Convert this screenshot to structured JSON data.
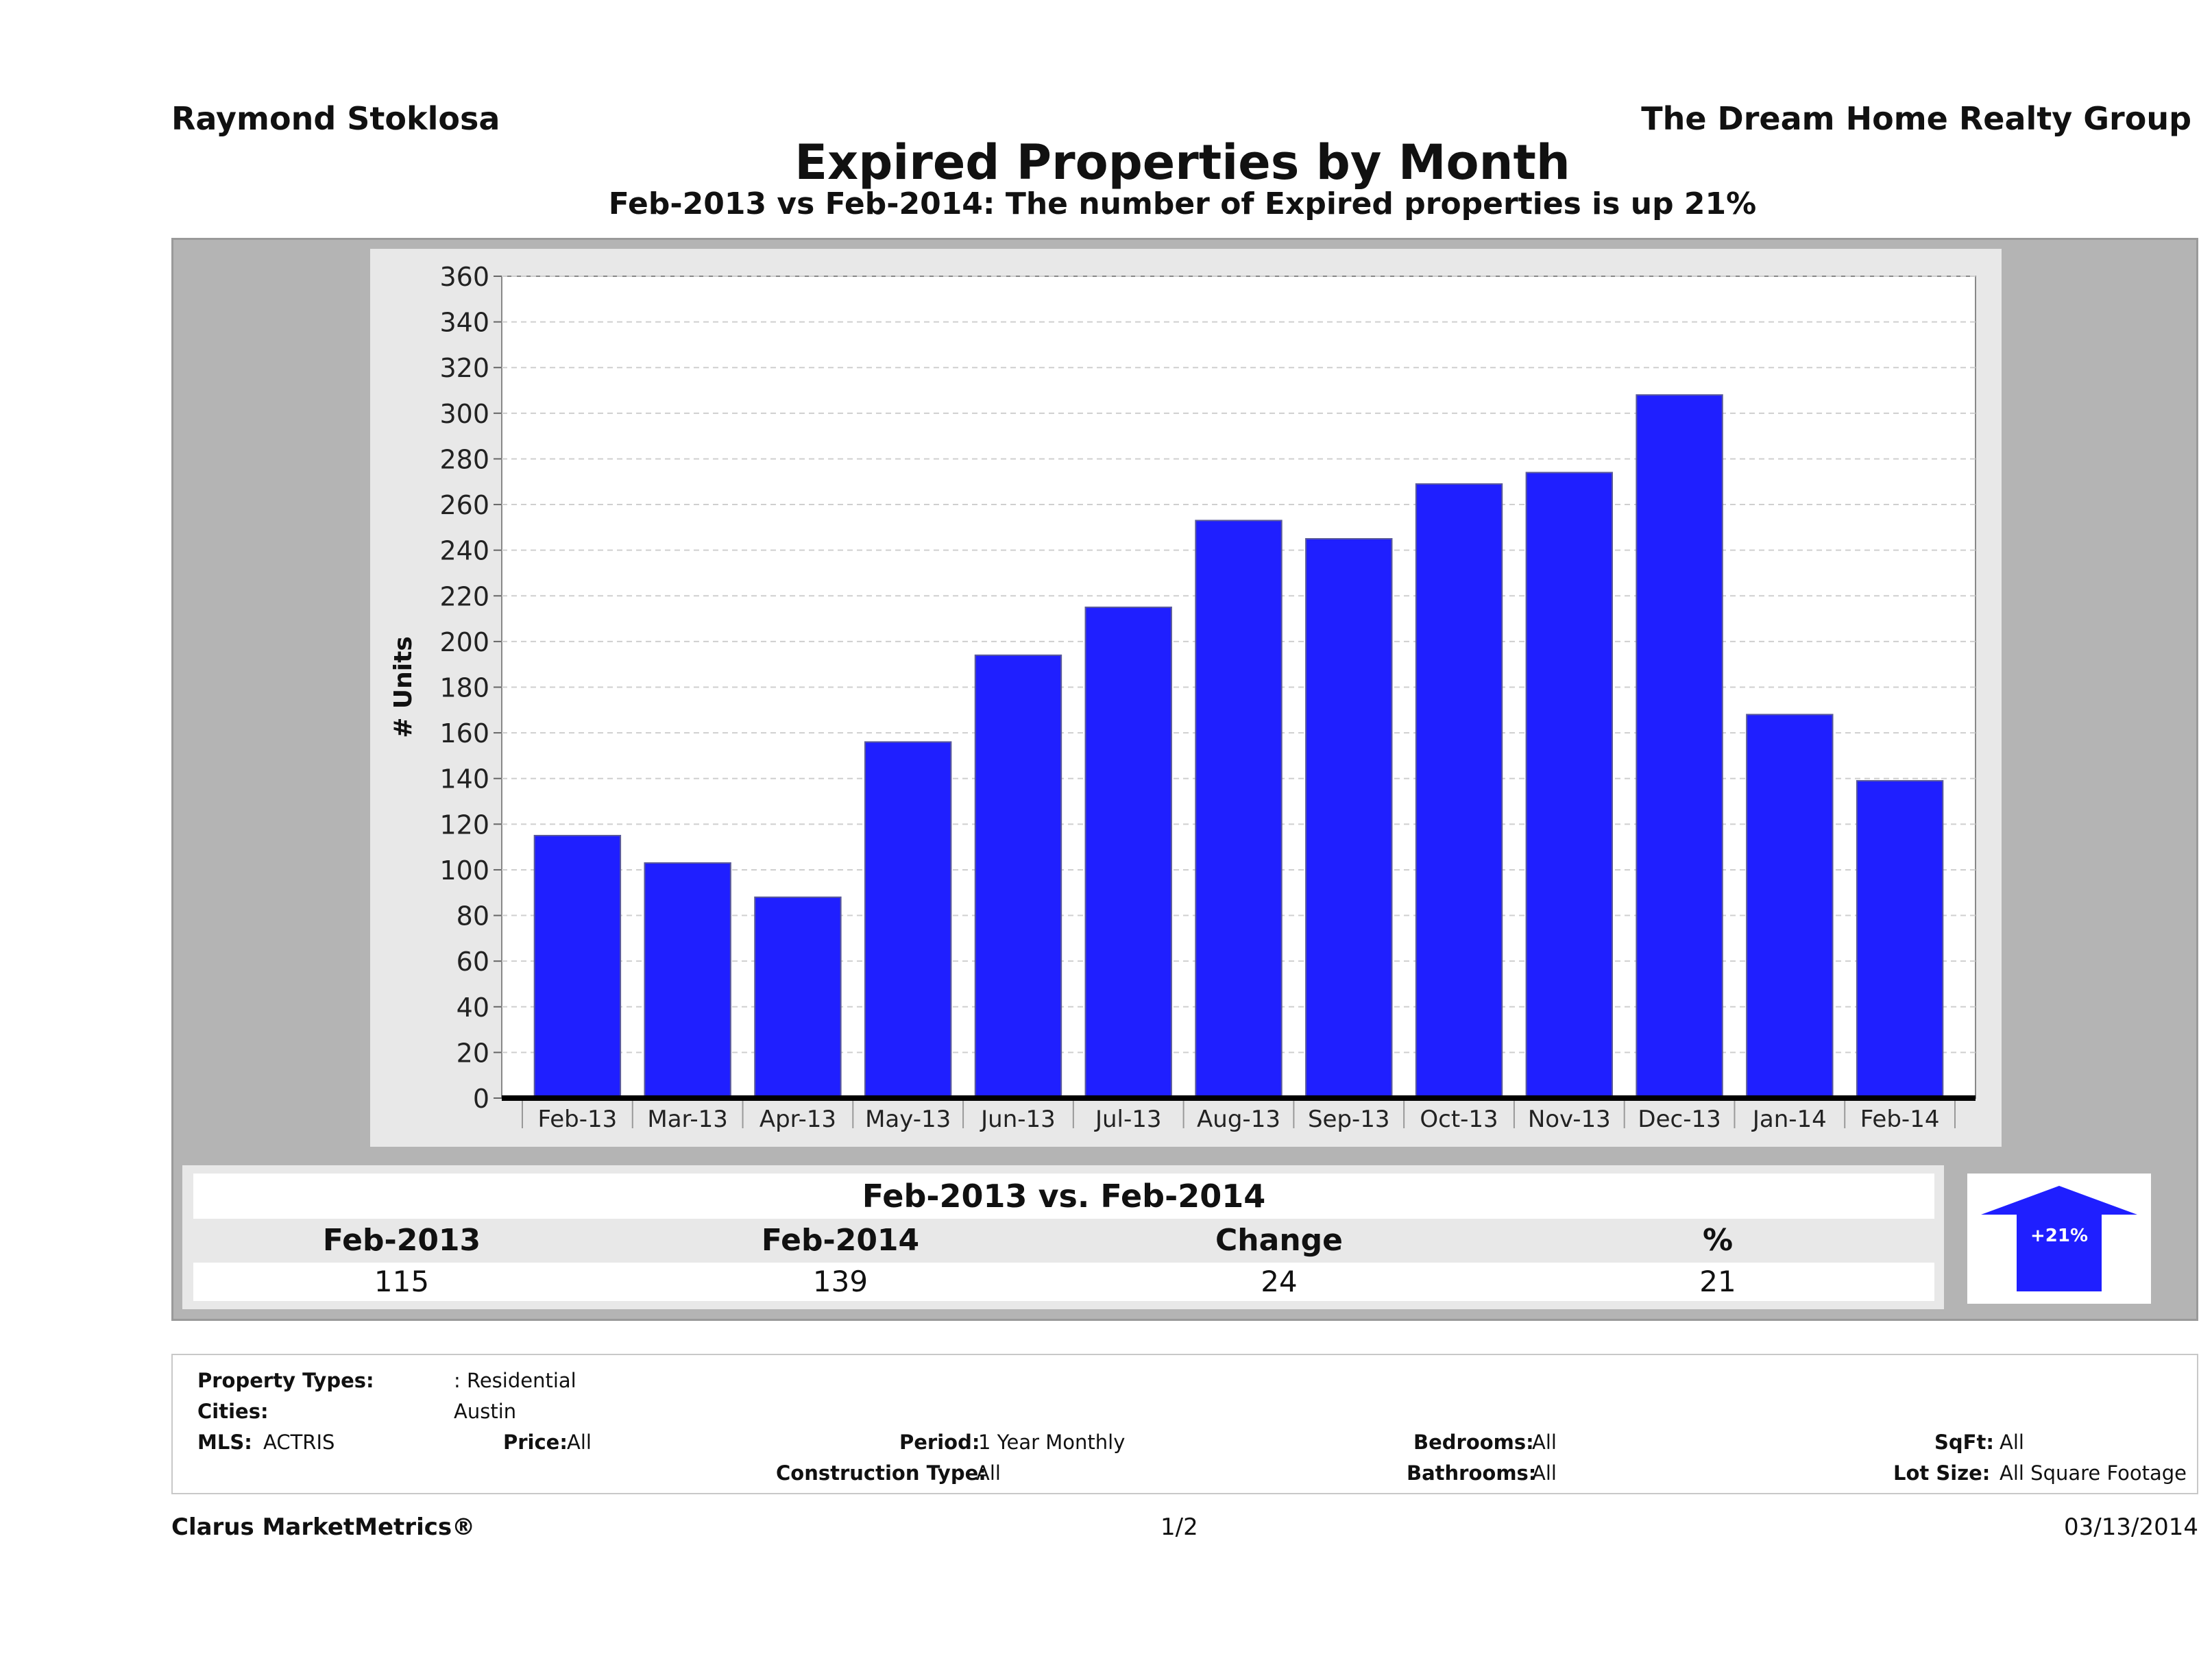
{
  "header": {
    "agent": "Raymond Stoklosa",
    "company": "The Dream Home Realty Group",
    "title": "Expired Properties by Month",
    "subtitle": "Feb-2013 vs Feb-2014: The number of Expired  properties is up 21%"
  },
  "chart_data": {
    "type": "bar",
    "categories": [
      "Feb-13",
      "Mar-13",
      "Apr-13",
      "May-13",
      "Jun-13",
      "Jul-13",
      "Aug-13",
      "Sep-13",
      "Oct-13",
      "Nov-13",
      "Dec-13",
      "Jan-14",
      "Feb-14"
    ],
    "values": [
      115,
      103,
      88,
      156,
      194,
      215,
      253,
      245,
      269,
      274,
      308,
      168,
      139
    ],
    "ylabel": "# Units",
    "ylim": [
      0,
      360
    ],
    "yticks": [
      0,
      20,
      40,
      60,
      80,
      100,
      120,
      140,
      160,
      180,
      200,
      220,
      240,
      260,
      280,
      300,
      320,
      340,
      360
    ],
    "grid": true,
    "bar_color": "#1f1fff"
  },
  "comparison": {
    "title": "Feb-2013 vs. Feb-2014",
    "headers": [
      "Feb-2013",
      "Feb-2014",
      "Change",
      "%"
    ],
    "values": [
      "115",
      "139",
      "24",
      "21"
    ],
    "badge": "+21%",
    "badge_icon": "up-arrow-icon"
  },
  "criteria": {
    "property_types_label": "Property Types:",
    "property_types_value": ": Residential",
    "cities_label": "Cities:",
    "cities_value": "Austin",
    "mls_label": "MLS:",
    "mls_value": "ACTRIS",
    "price_label": "Price:",
    "price_value": "All",
    "period_label": "Period:",
    "period_value": "1 Year Monthly",
    "construction_label": "Construction Type:",
    "construction_value": "All",
    "bedrooms_label": "Bedrooms:",
    "bedrooms_value": "All",
    "bathrooms_label": "Bathrooms:",
    "bathrooms_value": "All",
    "sqft_label": "SqFt:",
    "sqft_value": "All",
    "lotsize_label": "Lot Size:",
    "lotsize_value": "All Square Footage"
  },
  "footer": {
    "brand": "Clarus MarketMetrics®",
    "page": "1/2",
    "date": "03/13/2014"
  }
}
